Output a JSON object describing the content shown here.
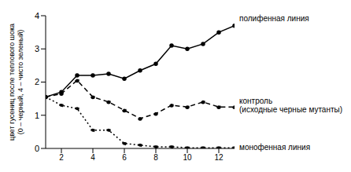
{
  "chart_data": {
    "type": "line",
    "y_label": "цвет гусениц после теплового шока (0 – черный, 4 – чисто зеленый)",
    "x": [
      1,
      2,
      3,
      4,
      5,
      6,
      7,
      8,
      9,
      10,
      11,
      12,
      13
    ],
    "xlim": [
      1,
      13
    ],
    "xticks": [
      2,
      4,
      6,
      8,
      10,
      12
    ],
    "ylim": [
      0,
      4
    ],
    "yticks": [
      0,
      1,
      2,
      3,
      4
    ],
    "grid": false,
    "series": [
      {
        "name": "полифенная линия",
        "color": "#000000",
        "line_style": "solid",
        "marker": "circle",
        "values": [
          1.55,
          1.7,
          2.2,
          2.2,
          2.25,
          2.1,
          2.35,
          2.55,
          3.1,
          3.0,
          3.15,
          3.5,
          3.7
        ]
      },
      {
        "name": "контроль (исходные черные мутанты)",
        "color": "#000000",
        "line_style": "dashed",
        "marker": "circle",
        "values": [
          1.55,
          1.65,
          2.05,
          1.55,
          1.4,
          1.15,
          0.9,
          1.05,
          1.3,
          1.25,
          1.4,
          1.25,
          1.25
        ]
      },
      {
        "name": "монофенная линия",
        "color": "#000000",
        "line_style": "dotted",
        "marker": "circle",
        "values": [
          1.55,
          1.3,
          1.2,
          0.55,
          0.55,
          0.15,
          0.1,
          0.05,
          0.05,
          0.02,
          0.02,
          0.02,
          0.02
        ]
      }
    ]
  }
}
